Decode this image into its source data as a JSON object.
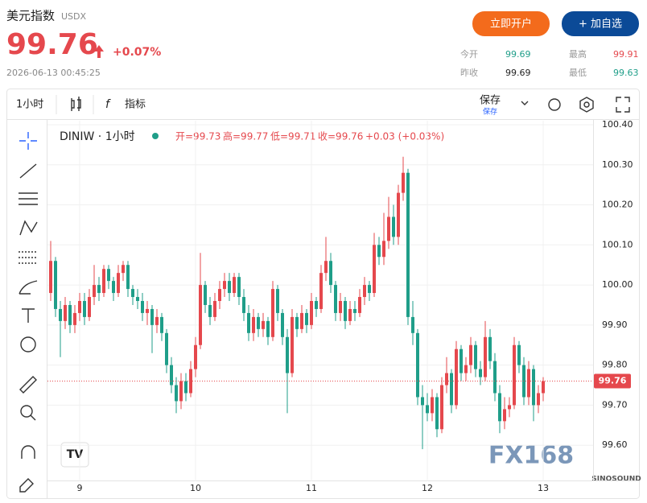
{
  "header": {
    "title": "美元指数",
    "symbol": "USDX",
    "price": "99.76",
    "change": "+0.07%",
    "time": "2026-06-13 00:45:25",
    "open_account": "立即开户",
    "add_watch": "+ 加自选",
    "stats": [
      {
        "label": "今开",
        "value": "99.69"
      },
      {
        "label": "最高",
        "value": "99.91"
      },
      {
        "label": "昨收",
        "value": "99.69"
      },
      {
        "label": "最低",
        "value": "99.63"
      }
    ]
  },
  "toolbar": {
    "interval": "1小时",
    "indicators": "指标",
    "save": "保存",
    "save_sub": "保存"
  },
  "legend": {
    "symbol": "DINIW · 1小时",
    "open": "开=99.73",
    "high": "高=99.77",
    "low": "低=99.71",
    "close": "收=99.76",
    "change": "+0.03 (+0.03%)"
  },
  "watermark": {
    "brand": "FX168",
    "sub": "SINOSOUND"
  },
  "chart_data": {
    "type": "candlestick",
    "up_color": "#e5484d",
    "down_color": "#1f9e89",
    "grid": true,
    "last_price": 99.76,
    "ylim": [
      99.51,
      100.41
    ],
    "yticks": [
      {
        "value": 99.6,
        "label": "99.60"
      },
      {
        "value": 99.7,
        "label": "99.70"
      },
      {
        "value": 99.8,
        "label": "99.80"
      },
      {
        "value": 99.9,
        "label": "99.90"
      },
      {
        "value": 100,
        "label": "100.00"
      },
      {
        "value": 100.1,
        "label": "100.10"
      },
      {
        "value": 100.2,
        "label": "100.20"
      },
      {
        "value": 100.3,
        "label": "100.30"
      },
      {
        "value": 100.4,
        "label": "100.40"
      }
    ],
    "categories": [
      null,
      null,
      null,
      null,
      null,
      null,
      "9",
      null,
      null,
      null,
      null,
      null,
      null,
      null,
      null,
      null,
      null,
      null,
      null,
      null,
      null,
      null,
      null,
      null,
      null,
      null,
      null,
      null,
      null,
      null,
      "10",
      null,
      null,
      null,
      null,
      null,
      null,
      null,
      null,
      null,
      null,
      null,
      null,
      null,
      null,
      null,
      null,
      null,
      null,
      null,
      null,
      null,
      null,
      null,
      "11",
      null,
      null,
      null,
      null,
      null,
      null,
      null,
      null,
      null,
      null,
      null,
      null,
      null,
      null,
      null,
      null,
      null,
      null,
      null,
      null,
      null,
      null,
      null,
      "12",
      null,
      null,
      null,
      null,
      null,
      null,
      null,
      null,
      null,
      null,
      null,
      null,
      null,
      null,
      null,
      null,
      null,
      null,
      null,
      null,
      null,
      null,
      null,
      "13"
    ],
    "values": [
      [
        99.98,
        100.11,
        99.96,
        100.06
      ],
      [
        100.06,
        100.07,
        99.92,
        99.94
      ],
      [
        99.94,
        99.96,
        99.82,
        99.91
      ],
      [
        99.91,
        99.97,
        99.89,
        99.95
      ],
      [
        99.95,
        99.96,
        99.88,
        99.9
      ],
      [
        99.9,
        99.95,
        99.88,
        99.93
      ],
      [
        99.93,
        99.98,
        99.91,
        99.96
      ],
      [
        99.96,
        99.98,
        99.9,
        99.92
      ],
      [
        99.92,
        99.99,
        99.91,
        99.97
      ],
      [
        99.97,
        100.05,
        99.95,
        100
      ],
      [
        100,
        100.02,
        99.96,
        99.98
      ],
      [
        99.98,
        100.05,
        99.97,
        100.04
      ],
      [
        100.04,
        100.05,
        99.99,
        100.01
      ],
      [
        100.01,
        100.02,
        99.96,
        99.98
      ],
      [
        99.98,
        100.05,
        99.97,
        100.03
      ],
      [
        100.03,
        100.06,
        100.01,
        100.05
      ],
      [
        100.05,
        100.06,
        99.97,
        99.99
      ],
      [
        99.99,
        100,
        99.95,
        99.97
      ],
      [
        99.97,
        99.99,
        99.94,
        99.96
      ],
      [
        99.96,
        99.98,
        99.91,
        99.93
      ],
      [
        99.93,
        99.96,
        99.9,
        99.94
      ],
      [
        99.94,
        99.95,
        99.83,
        99.9
      ],
      [
        99.9,
        99.94,
        99.88,
        99.92
      ],
      [
        99.92,
        99.93,
        99.86,
        99.88
      ],
      [
        99.88,
        99.89,
        99.78,
        99.8
      ],
      [
        99.8,
        99.82,
        99.73,
        99.75
      ],
      [
        99.75,
        99.77,
        99.68,
        99.71
      ],
      [
        99.71,
        99.78,
        99.69,
        99.76
      ],
      [
        99.76,
        99.78,
        99.71,
        99.73
      ],
      [
        99.73,
        99.81,
        99.72,
        99.79
      ],
      [
        99.79,
        99.87,
        99.77,
        99.85
      ],
      [
        99.85,
        100.08,
        99.84,
        100
      ],
      [
        100,
        100.01,
        99.93,
        99.95
      ],
      [
        99.95,
        99.97,
        99.9,
        99.92
      ],
      [
        99.92,
        99.98,
        99.91,
        99.96
      ],
      [
        99.96,
        100.01,
        99.94,
        99.99
      ],
      [
        99.99,
        100.03,
        99.97,
        100.01
      ],
      [
        100.01,
        100.03,
        99.96,
        99.98
      ],
      [
        99.98,
        100.03,
        99.97,
        100.02
      ],
      [
        100.02,
        100.03,
        99.95,
        99.97
      ],
      [
        99.97,
        99.99,
        99.91,
        99.93
      ],
      [
        99.93,
        99.95,
        99.86,
        99.88
      ],
      [
        99.88,
        99.94,
        99.86,
        99.92
      ],
      [
        99.92,
        99.93,
        99.87,
        99.89
      ],
      [
        99.89,
        99.93,
        99.87,
        99.91
      ],
      [
        99.91,
        99.92,
        99.85,
        99.87
      ],
      [
        99.87,
        100.01,
        99.86,
        99.99
      ],
      [
        99.99,
        100,
        99.91,
        99.93
      ],
      [
        99.93,
        99.94,
        99.85,
        99.87
      ],
      [
        99.87,
        99.89,
        99.68,
        99.78
      ],
      [
        99.78,
        99.94,
        99.77,
        99.92
      ],
      [
        99.92,
        99.93,
        99.87,
        99.89
      ],
      [
        99.89,
        99.95,
        99.88,
        99.93
      ],
      [
        99.93,
        99.94,
        99.88,
        99.9
      ],
      [
        99.9,
        99.98,
        99.89,
        99.96
      ],
      [
        99.96,
        99.97,
        99.92,
        99.94
      ],
      [
        99.94,
        100.05,
        99.93,
        100.03
      ],
      [
        100.03,
        100.12,
        100.01,
        100.06
      ],
      [
        100.06,
        100.08,
        99.98,
        100
      ],
      [
        100,
        100.01,
        99.91,
        99.93
      ],
      [
        99.93,
        99.98,
        99.91,
        99.96
      ],
      [
        99.96,
        99.97,
        99.89,
        99.91
      ],
      [
        99.91,
        99.96,
        99.9,
        99.94
      ],
      [
        99.94,
        99.96,
        99.91,
        99.93
      ],
      [
        99.93,
        99.99,
        99.92,
        99.97
      ],
      [
        99.97,
        100.02,
        99.95,
        100
      ],
      [
        100,
        100.01,
        99.96,
        99.98
      ],
      [
        99.98,
        100.13,
        99.97,
        100.1
      ],
      [
        100.1,
        100.12,
        100.05,
        100.07
      ],
      [
        100.07,
        100.18,
        100.05,
        100.11
      ],
      [
        100.11,
        100.22,
        100.09,
        100.17
      ],
      [
        100.17,
        100.2,
        100.1,
        100.12
      ],
      [
        100.12,
        100.25,
        100.1,
        100.23
      ],
      [
        100.23,
        100.32,
        100.21,
        100.28
      ],
      [
        100.28,
        100.29,
        99.9,
        99.92
      ],
      [
        99.92,
        99.96,
        99.85,
        99.88
      ],
      [
        99.88,
        99.89,
        99.7,
        99.72
      ],
      [
        99.72,
        99.75,
        99.59,
        99.7
      ],
      [
        99.7,
        99.73,
        99.66,
        99.68
      ],
      [
        99.68,
        99.74,
        99.66,
        99.72
      ],
      [
        99.72,
        99.73,
        99.62,
        99.64
      ],
      [
        99.64,
        99.77,
        99.63,
        99.75
      ],
      [
        99.75,
        99.82,
        99.73,
        99.78
      ],
      [
        99.78,
        99.79,
        99.68,
        99.7
      ],
      [
        99.7,
        99.86,
        99.69,
        99.84
      ],
      [
        99.84,
        99.85,
        99.76,
        99.78
      ],
      [
        99.78,
        99.82,
        99.76,
        99.8
      ],
      [
        99.8,
        99.87,
        99.78,
        99.85
      ],
      [
        99.85,
        99.86,
        99.77,
        99.79
      ],
      [
        99.79,
        99.81,
        99.75,
        99.77
      ],
      [
        99.77,
        99.91,
        99.76,
        99.87
      ],
      [
        99.87,
        99.89,
        99.79,
        99.81
      ],
      [
        99.81,
        99.83,
        99.71,
        99.73
      ],
      [
        99.73,
        99.75,
        99.63,
        99.66
      ],
      [
        99.66,
        99.72,
        99.64,
        99.69
      ],
      [
        99.69,
        99.72,
        99.67,
        99.7
      ],
      [
        99.7,
        99.87,
        99.69,
        99.85
      ],
      [
        99.85,
        99.86,
        99.78,
        99.8
      ],
      [
        99.8,
        99.82,
        99.7,
        99.72
      ],
      [
        99.72,
        99.81,
        99.7,
        99.79
      ],
      [
        99.79,
        99.8,
        99.66,
        99.7
      ],
      [
        99.7,
        99.75,
        99.68,
        99.73
      ],
      [
        99.73,
        99.77,
        99.71,
        99.76
      ]
    ]
  }
}
